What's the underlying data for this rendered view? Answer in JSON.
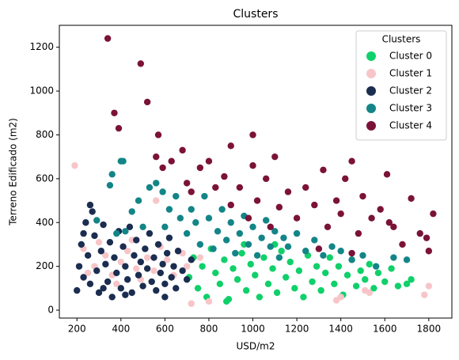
{
  "chart_data": {
    "type": "scatter",
    "title": "Clusters",
    "x_label": "USD/m2",
    "y_label": "Terreno Edificado (m2)",
    "legend_title": "Clusters",
    "legend_position": "upper right",
    "xlim": [
      120,
      1905
    ],
    "ylim": [
      -36,
      1300
    ],
    "xticks": [
      200,
      400,
      600,
      800,
      1000,
      1200,
      1400,
      1600,
      1800
    ],
    "yticks": [
      0,
      200,
      400,
      600,
      800,
      1000,
      1200
    ],
    "series": [
      {
        "name": "Cluster 0",
        "color": "#10d06a",
        "x": [
          710,
          730,
          750,
          770,
          790,
          810,
          830,
          850,
          870,
          890,
          910,
          930,
          950,
          970,
          990,
          1010,
          1030,
          1050,
          1070,
          1090,
          1110,
          1130,
          1150,
          1170,
          1190,
          1210,
          1230,
          1250,
          1270,
          1290,
          1310,
          1330,
          1350,
          1370,
          1390,
          1410,
          1430,
          1450,
          1470,
          1490,
          1510,
          1530,
          1550,
          1570,
          1600,
          1630,
          1660,
          1700,
          1720,
          880,
          1100,
          960
        ],
        "y": [
          150,
          240,
          100,
          200,
          60,
          280,
          170,
          120,
          230,
          50,
          190,
          140,
          260,
          90,
          210,
          160,
          60,
          240,
          120,
          190,
          80,
          270,
          150,
          220,
          100,
          180,
          60,
          250,
          130,
          200,
          90,
          170,
          240,
          120,
          200,
          70,
          160,
          230,
          110,
          180,
          140,
          210,
          100,
          170,
          130,
          190,
          110,
          120,
          140,
          40,
          300,
          300
        ]
      },
      {
        "name": "Cluster 1",
        "color": "#f7c5c8",
        "x": [
          190,
          560,
          720,
          1380,
          1800,
          1780,
          1510,
          230,
          280,
          330,
          360,
          400,
          430,
          470,
          490,
          520,
          550,
          580,
          610,
          640,
          680,
          700,
          450,
          380,
          300,
          760,
          800,
          1400,
          1530,
          250
        ],
        "y": [
          660,
          500,
          30,
          45,
          110,
          70,
          90,
          280,
          200,
          250,
          160,
          220,
          270,
          190,
          140,
          240,
          180,
          290,
          230,
          160,
          260,
          200,
          320,
          120,
          310,
          240,
          40,
          60,
          80,
          170
        ]
      },
      {
        "name": "Cluster 2",
        "color": "#1b2d50",
        "x": [
          200,
          210,
          220,
          230,
          240,
          250,
          260,
          270,
          280,
          290,
          300,
          310,
          320,
          330,
          340,
          350,
          360,
          370,
          380,
          390,
          400,
          410,
          420,
          430,
          440,
          450,
          460,
          470,
          480,
          490,
          500,
          510,
          520,
          530,
          540,
          550,
          560,
          570,
          580,
          590,
          600,
          610,
          620,
          630,
          640,
          650,
          660,
          680,
          700,
          720,
          260,
          230,
          320,
          420,
          600
        ],
        "y": [
          90,
          200,
          300,
          150,
          400,
          250,
          120,
          450,
          340,
          180,
          80,
          270,
          390,
          210,
          130,
          310,
          60,
          240,
          170,
          360,
          100,
          290,
          200,
          140,
          380,
          80,
          250,
          320,
          160,
          220,
          110,
          280,
          190,
          350,
          130,
          240,
          90,
          300,
          170,
          210,
          120,
          260,
          330,
          150,
          200,
          100,
          270,
          180,
          140,
          230,
          480,
          350,
          100,
          70,
          60
        ]
      },
      {
        "name": "Cluster 3",
        "color": "#138587",
        "x": [
          290,
          350,
          360,
          380,
          400,
          410,
          420,
          450,
          480,
          500,
          530,
          560,
          590,
          600,
          620,
          650,
          670,
          700,
          720,
          740,
          760,
          780,
          800,
          820,
          840,
          860,
          880,
          900,
          920,
          940,
          960,
          980,
          1000,
          1020,
          1040,
          1060,
          1080,
          1100,
          1120,
          1140,
          1160,
          1200,
          1240,
          1280,
          1320,
          1360,
          1400,
          1450,
          1500,
          1560,
          1640,
          1700
        ],
        "y": [
          410,
          570,
          620,
          350,
          680,
          680,
          360,
          450,
          500,
          380,
          560,
          580,
          540,
          380,
          460,
          520,
          420,
          350,
          460,
          400,
          300,
          520,
          420,
          280,
          360,
          460,
          320,
          400,
          260,
          350,
          430,
          300,
          380,
          250,
          330,
          410,
          290,
          360,
          240,
          330,
          290,
          350,
          270,
          320,
          250,
          290,
          270,
          230,
          250,
          200,
          240,
          230
        ]
      },
      {
        "name": "Cluster 4",
        "color": "#7b1238",
        "x": [
          340,
          490,
          520,
          370,
          390,
          570,
          1000,
          900,
          560,
          590,
          630,
          680,
          700,
          720,
          760,
          800,
          830,
          870,
          900,
          940,
          980,
          1000,
          1020,
          1060,
          1080,
          1100,
          1120,
          1160,
          1200,
          1240,
          1280,
          1320,
          1340,
          1380,
          1400,
          1420,
          1450,
          1480,
          1500,
          1540,
          1580,
          1610,
          1640,
          1680,
          1720,
          1760,
          1790,
          1800,
          1820,
          1620,
          1450,
          1300
        ],
        "y": [
          1240,
          1125,
          950,
          900,
          830,
          800,
          800,
          750,
          700,
          650,
          680,
          730,
          580,
          540,
          650,
          680,
          560,
          610,
          480,
          560,
          420,
          660,
          500,
          600,
          380,
          700,
          470,
          540,
          420,
          560,
          480,
          640,
          380,
          500,
          440,
          600,
          680,
          350,
          520,
          420,
          460,
          620,
          380,
          300,
          510,
          350,
          330,
          270,
          440,
          400,
          260,
          280
        ]
      }
    ]
  }
}
